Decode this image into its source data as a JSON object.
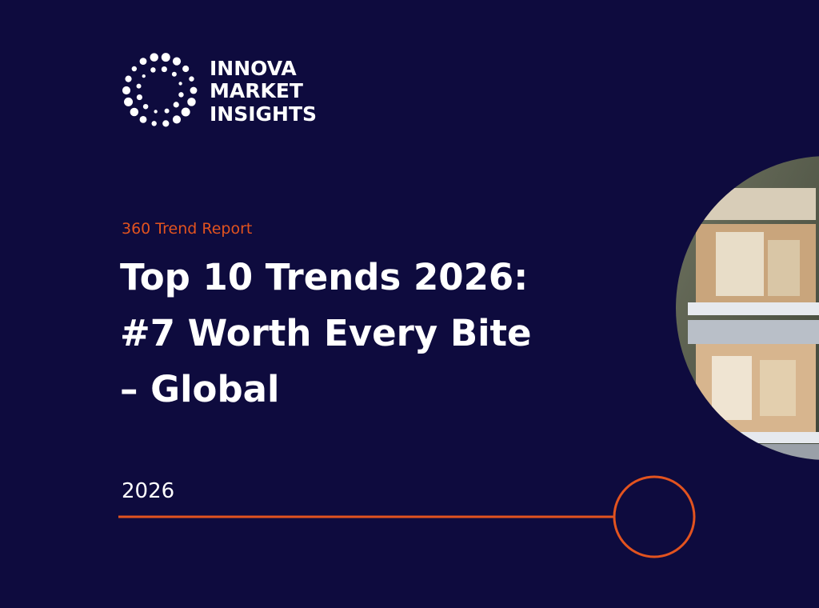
{
  "logo": {
    "lines": [
      "INNOVA",
      "MARKET",
      "INSIGHTS"
    ]
  },
  "report_type": "360 Trend Report",
  "title": {
    "lines": [
      "Top 10 Trends 2026:",
      "#7 Worth Every Bite",
      "– Global"
    ]
  },
  "year": "2026"
}
